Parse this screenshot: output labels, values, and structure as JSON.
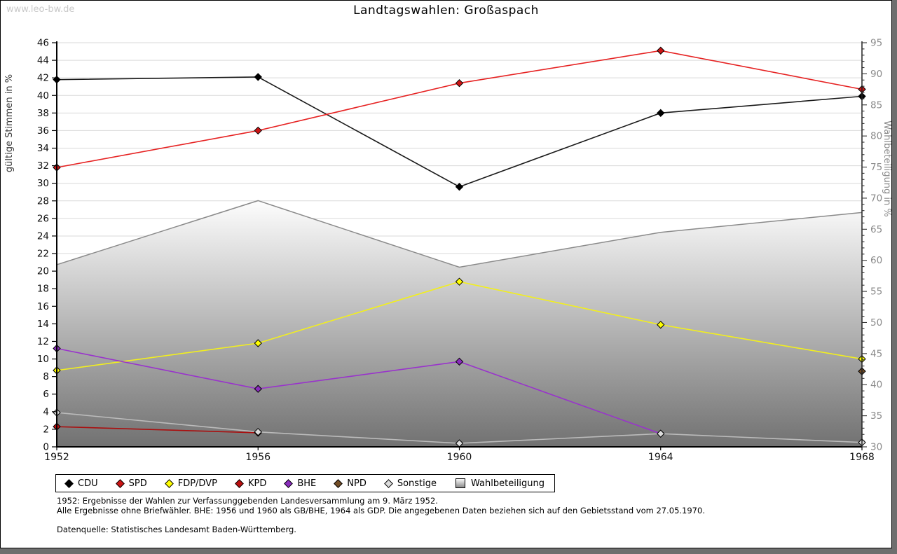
{
  "watermark": "www.leo-bw.de",
  "footer": {
    "lines": {
      "l1": "1952: Ergebnisse der Wahlen zur Verfassunggebenden Landesversammlung am 9. März 1952.",
      "l2": "Alle Ergebnisse ohne Briefwähler. BHE: 1956 und 1960 als GB/BHE, 1964 als GDP. Die angegebenen Daten beziehen sich auf den Gebietsstand vom 27.05.1970.",
      "source": "Datenquelle: Statistisches Landesamt Baden-Württemberg."
    }
  },
  "chart_data": {
    "type": "line",
    "title": "Landtagswahlen: Großaspach",
    "x": [
      1952,
      1956,
      1960,
      1964,
      1968
    ],
    "left_axis": {
      "label": "gültige Stimmen in %",
      "min": 0,
      "max": 46,
      "tick_step": 2,
      "ticks": [
        0,
        2,
        4,
        6,
        8,
        10,
        12,
        14,
        16,
        18,
        20,
        22,
        24,
        26,
        28,
        30,
        32,
        34,
        36,
        38,
        40,
        42,
        44,
        46
      ]
    },
    "right_axis": {
      "label": "Wahlbeteiligung in %",
      "min": 30,
      "max": 95,
      "tick_step": 5,
      "ticks": [
        30,
        35,
        40,
        45,
        50,
        55,
        60,
        65,
        70,
        75,
        80,
        85,
        90,
        95
      ]
    },
    "grid": "horizontal",
    "legend_position": "bottom",
    "series": [
      {
        "name": "CDU",
        "axis": "left",
        "line_color": "#1a1a1a",
        "marker_color": "#000000",
        "values": [
          41.8,
          42.1,
          29.6,
          38.0,
          39.9
        ]
      },
      {
        "name": "SPD",
        "axis": "left",
        "line_color": "#e62222",
        "marker_color": "#cc1414",
        "values": [
          31.8,
          36.0,
          41.4,
          45.1,
          40.7
        ]
      },
      {
        "name": "FDP/DVP",
        "axis": "left",
        "line_color": "#f2ef1d",
        "marker_color": "#ffff00",
        "values": [
          8.7,
          11.8,
          18.8,
          13.9,
          10.0
        ]
      },
      {
        "name": "KPD",
        "axis": "left",
        "line_color": "#aa0f0f",
        "marker_color": "#bb0f0f",
        "values": [
          2.3,
          1.6,
          null,
          null,
          null
        ]
      },
      {
        "name": "BHE",
        "axis": "left",
        "line_color": "#9933cc",
        "marker_color": "#8a2dbd",
        "values": [
          11.2,
          6.6,
          9.7,
          1.5,
          null
        ]
      },
      {
        "name": "NPD",
        "axis": "left",
        "line_color": "#734d26",
        "marker_color": "#734d26",
        "values": [
          null,
          null,
          null,
          null,
          8.6
        ]
      },
      {
        "name": "Sonstige",
        "axis": "left",
        "line_color": "#bbbbbb",
        "marker_color": "#dcdcdc",
        "values": [
          3.9,
          1.7,
          0.4,
          1.5,
          0.5
        ]
      }
    ],
    "area_series": {
      "name": "Wahlbeteiligung",
      "axis": "right",
      "boundary_color": "#8a8a8a",
      "fill_top_color": "#fdfdfd",
      "fill_bottom_color": "#717171",
      "values": [
        59.3,
        69.6,
        58.9,
        64.5,
        67.7
      ]
    },
    "legend": [
      "CDU",
      "SPD",
      "FDP/DVP",
      "KPD",
      "BHE",
      "NPD",
      "Sonstige",
      "Wahlbeteiligung"
    ]
  }
}
